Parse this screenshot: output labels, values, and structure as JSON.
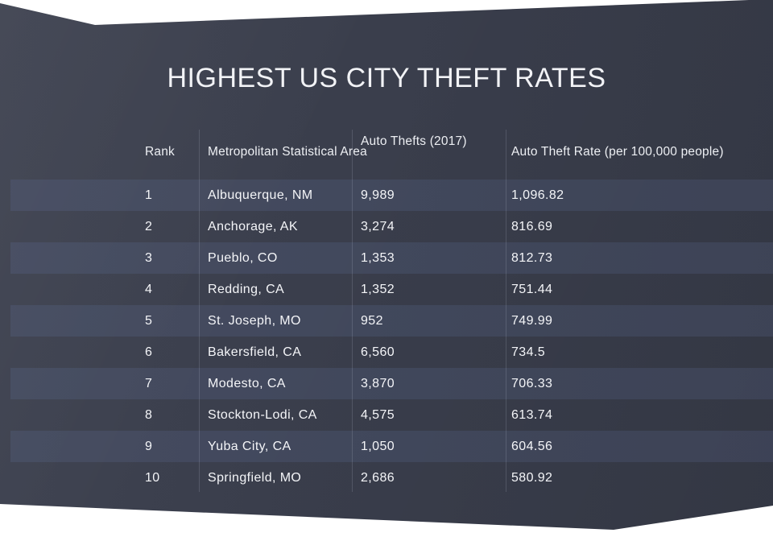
{
  "page": {
    "background_color": "#ffffff",
    "panel_color": "#393d4b",
    "stripe_color": "#3e4456",
    "text_color": "#f4f5f8"
  },
  "chart_data": {
    "type": "table",
    "title": "HIGHEST US CITY THEFT RATES",
    "columns": [
      "Rank",
      "Metropolitan Statistical Area",
      "Auto Thefts (2017)",
      "Auto Theft Rate (per 100,000 people)"
    ],
    "rows": [
      {
        "rank": "1",
        "metro": "Albuquerque, NM",
        "thefts": "9,989",
        "rate": "1,096.82"
      },
      {
        "rank": "2",
        "metro": "Anchorage, AK",
        "thefts": "3,274",
        "rate": "816.69"
      },
      {
        "rank": "3",
        "metro": "Pueblo, CO",
        "thefts": "1,353",
        "rate": "812.73"
      },
      {
        "rank": "4",
        "metro": "Redding, CA",
        "thefts": "1,352",
        "rate": "751.44"
      },
      {
        "rank": "5",
        "metro": "St. Joseph, MO",
        "thefts": "952",
        "rate": "749.99"
      },
      {
        "rank": "6",
        "metro": "Bakersfield, CA",
        "thefts": "6,560",
        "rate": "734.5"
      },
      {
        "rank": "7",
        "metro": "Modesto, CA",
        "thefts": "3,870",
        "rate": "706.33"
      },
      {
        "rank": "8",
        "metro": "Stockton-Lodi, CA",
        "thefts": "4,575",
        "rate": "613.74"
      },
      {
        "rank": "9",
        "metro": "Yuba City, CA",
        "thefts": "1,050",
        "rate": "604.56"
      },
      {
        "rank": "10",
        "metro": "Springfield, MO",
        "thefts": "2,686",
        "rate": "580.92"
      }
    ],
    "layout": {
      "striped_rows": "odd ranks highlighted",
      "grid": "vertical column dividers only"
    }
  }
}
